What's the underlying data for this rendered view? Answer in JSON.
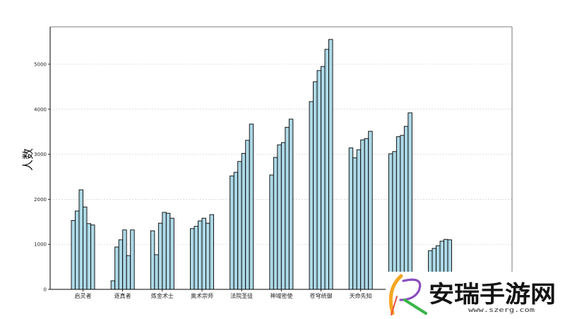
{
  "watermark": {
    "brand": "安瑞手游网",
    "url": "www.szerg.com",
    "logo_icon": "stylized-r-logo-icon"
  },
  "colors": {
    "bar_fill": "#add8e6",
    "bar_edge": "#000000",
    "grid": "#cfcfcf",
    "axis": "#000000"
  },
  "chart_data": {
    "type": "bar",
    "title": "",
    "xlabel": "",
    "ylabel": "人数",
    "categories": [
      "启灵者",
      "逐真者",
      "炼金术士",
      "奥术宗师",
      "法院圣徒",
      "神域密使",
      "苍穹统御",
      "天命先知",
      "",
      ""
    ],
    "series": [
      {
        "values": [
          1530,
          190,
          1300,
          1350,
          2520,
          2540,
          4170,
          3140,
          3010,
          860
        ]
      },
      {
        "values": [
          1740,
          940,
          770,
          1400,
          2600,
          2930,
          4610,
          2920,
          3060,
          910
        ]
      },
      {
        "values": [
          2210,
          1100,
          1470,
          1520,
          2840,
          3210,
          4860,
          3100,
          3390,
          970
        ]
      },
      {
        "values": [
          1830,
          1320,
          1710,
          1580,
          3020,
          3260,
          4950,
          3320,
          3420,
          1070
        ]
      },
      {
        "values": [
          1460,
          750,
          1690,
          1470,
          3310,
          3600,
          5330,
          3350,
          3620,
          1110
        ]
      },
      {
        "values": [
          1430,
          1320,
          1580,
          1660,
          3670,
          3780,
          5550,
          3510,
          3920,
          1100
        ]
      }
    ],
    "ylim": [
      0,
      5830
    ],
    "yticks": [
      0,
      1000,
      2000,
      3000,
      4000,
      5000
    ],
    "grid": true,
    "legend": null
  }
}
